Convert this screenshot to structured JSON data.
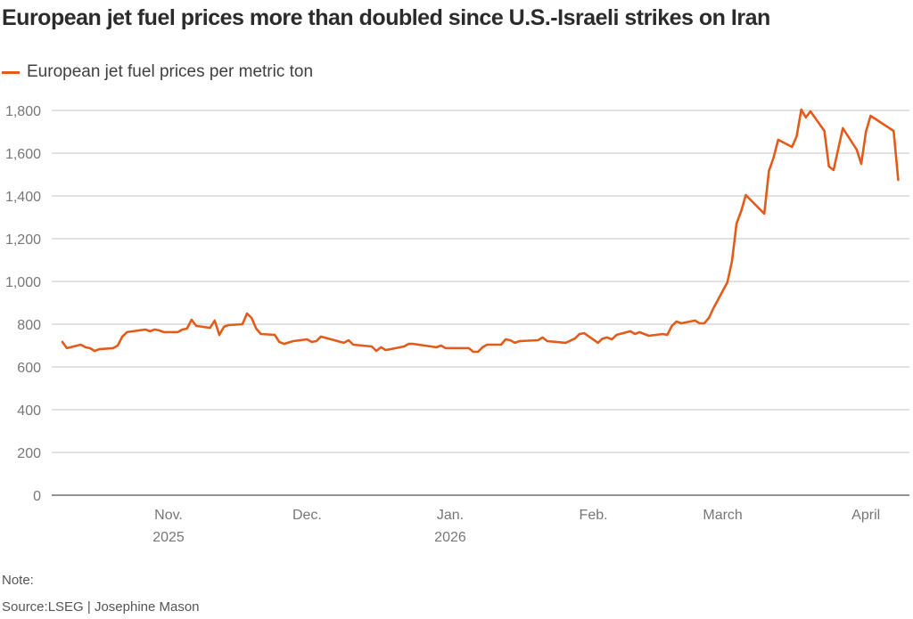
{
  "chart_data": {
    "type": "line",
    "title": "European jet fuel prices more than doubled since U.S.-Israeli strikes on Iran",
    "xlabel": "",
    "ylabel": "",
    "ylim": [
      0,
      1800
    ],
    "yticks": [
      0,
      200,
      400,
      600,
      800,
      1000,
      1200,
      1400,
      1600,
      1800
    ],
    "ytick_labels": [
      "0",
      "200",
      "400",
      "600",
      "800",
      "1,000",
      "1,200",
      "1,400",
      "1,600",
      "1,800"
    ],
    "xticks": [
      {
        "date": "2025-11-01",
        "label": "Nov.",
        "sublabel": "2025"
      },
      {
        "date": "2025-12-01",
        "label": "Dec.",
        "sublabel": ""
      },
      {
        "date": "2026-01-01",
        "label": "Jan.",
        "sublabel": "2026"
      },
      {
        "date": "2026-02-01",
        "label": "Feb.",
        "sublabel": ""
      },
      {
        "date": "2026-03-01",
        "label": "March",
        "sublabel": ""
      },
      {
        "date": "2026-04-01",
        "label": "April",
        "sublabel": ""
      }
    ],
    "grid": true,
    "legend_position": "top-left",
    "series": [
      {
        "name": "European jet fuel prices per metric ton",
        "color": "#e35b1a",
        "x": [
          "2025-10-09",
          "2025-10-10",
          "2025-10-13",
          "2025-10-14",
          "2025-10-15",
          "2025-10-16",
          "2025-10-17",
          "2025-10-20",
          "2025-10-21",
          "2025-10-22",
          "2025-10-23",
          "2025-10-27",
          "2025-10-28",
          "2025-10-29",
          "2025-10-30",
          "2025-10-31",
          "2025-11-03",
          "2025-11-04",
          "2025-11-05",
          "2025-11-06",
          "2025-11-07",
          "2025-11-10",
          "2025-11-11",
          "2025-11-12",
          "2025-11-13",
          "2025-11-14",
          "2025-11-17",
          "2025-11-18",
          "2025-11-19",
          "2025-11-20",
          "2025-11-21",
          "2025-11-24",
          "2025-11-25",
          "2025-11-26",
          "2025-11-28",
          "2025-12-01",
          "2025-12-02",
          "2025-12-03",
          "2025-12-04",
          "2025-12-09",
          "2025-12-10",
          "2025-12-11",
          "2025-12-15",
          "2025-12-16",
          "2025-12-17",
          "2025-12-18",
          "2025-12-19",
          "2025-12-22",
          "2025-12-23",
          "2025-12-24",
          "2025-12-29",
          "2025-12-30",
          "2025-12-31",
          "2026-01-05",
          "2026-01-06",
          "2026-01-07",
          "2026-01-08",
          "2026-01-09",
          "2026-01-12",
          "2026-01-13",
          "2026-01-14",
          "2026-01-15",
          "2026-01-16",
          "2026-01-20",
          "2026-01-21",
          "2026-01-22",
          "2026-01-26",
          "2026-01-28",
          "2026-01-29",
          "2026-01-30",
          "2026-02-02",
          "2026-02-03",
          "2026-02-04",
          "2026-02-05",
          "2026-02-06",
          "2026-02-09",
          "2026-02-10",
          "2026-02-11",
          "2026-02-13",
          "2026-02-16",
          "2026-02-17",
          "2026-02-18",
          "2026-02-19",
          "2026-02-20",
          "2026-02-23",
          "2026-02-24",
          "2026-02-25",
          "2026-02-26",
          "2026-02-27",
          "2026-03-02",
          "2026-03-03",
          "2026-03-04",
          "2026-03-05",
          "2026-03-06",
          "2026-03-10",
          "2026-03-11",
          "2026-03-12",
          "2026-03-13",
          "2026-03-16",
          "2026-03-17",
          "2026-03-18",
          "2026-03-19",
          "2026-03-20",
          "2026-03-23",
          "2026-03-24",
          "2026-03-25",
          "2026-03-27",
          "2026-03-30",
          "2026-03-31",
          "2026-04-01",
          "2026-04-02",
          "2026-04-07",
          "2026-04-08"
        ],
        "values": [
          717,
          688,
          704,
          692,
          688,
          675,
          683,
          688,
          700,
          742,
          763,
          775,
          767,
          775,
          771,
          763,
          763,
          775,
          779,
          821,
          792,
          783,
          817,
          750,
          788,
          796,
          800,
          850,
          829,
          779,
          754,
          750,
          717,
          708,
          721,
          729,
          717,
          721,
          742,
          713,
          725,
          704,
          696,
          675,
          692,
          679,
          683,
          696,
          708,
          708,
          692,
          700,
          688,
          688,
          671,
          671,
          692,
          704,
          704,
          729,
          725,
          713,
          721,
          725,
          738,
          721,
          713,
          733,
          754,
          758,
          713,
          733,
          738,
          729,
          750,
          767,
          754,
          763,
          746,
          754,
          750,
          792,
          813,
          804,
          817,
          804,
          804,
          829,
          875,
          996,
          1096,
          1271,
          1329,
          1404,
          1317,
          1517,
          1579,
          1663,
          1629,
          1679,
          1804,
          1767,
          1796,
          1704,
          1538,
          1521,
          1717,
          1617,
          1550,
          1700,
          1775,
          1704,
          1475
        ]
      }
    ]
  },
  "footer": {
    "note": "Note:",
    "source": "Source:LSEG | Josephine Mason"
  }
}
